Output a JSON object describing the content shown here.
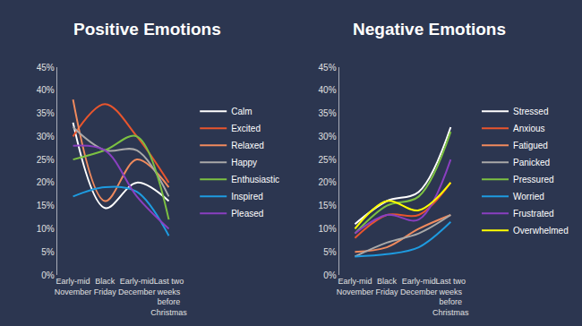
{
  "chart_data": [
    {
      "type": "line",
      "title": "Positive Emotions",
      "categories": [
        "Early-mid November",
        "Black Friday",
        "Early-mid December",
        "Last two weeks before Christmas"
      ],
      "series": [
        {
          "name": "Calm",
          "color": "#ffffff",
          "values": [
            33,
            14.5,
            20,
            16
          ]
        },
        {
          "name": "Excited",
          "color": "#e8552d",
          "values": [
            30,
            37,
            30,
            20
          ]
        },
        {
          "name": "Relaxed",
          "color": "#f08a5d",
          "values": [
            38,
            16,
            25,
            19
          ]
        },
        {
          "name": "Happy",
          "color": "#a9a9a9",
          "values": [
            32,
            27,
            27,
            17
          ]
        },
        {
          "name": "Enthusiastic",
          "color": "#7cc142",
          "values": [
            25,
            27,
            30,
            12
          ]
        },
        {
          "name": "Inspired",
          "color": "#1e9be0",
          "values": [
            17,
            19,
            18,
            8.5
          ]
        },
        {
          "name": "Pleased",
          "color": "#8a3fc0",
          "values": [
            28,
            27,
            17,
            10
          ]
        }
      ],
      "ylim": [
        0,
        45
      ],
      "yticks": [
        {
          "value": 0,
          "label": "0%"
        },
        {
          "value": 5,
          "label": "5%"
        },
        {
          "value": 10,
          "label": "10%"
        },
        {
          "value": 15,
          "label": "15%"
        },
        {
          "value": 20,
          "label": "20%"
        },
        {
          "value": 25,
          "label": "25%"
        },
        {
          "value": 30,
          "label": "30%"
        },
        {
          "value": 35,
          "label": "35%"
        },
        {
          "value": 40,
          "label": "40%"
        },
        {
          "value": 45,
          "label": "45%"
        }
      ],
      "grid": false,
      "legend": "right",
      "line_style": "smooth"
    },
    {
      "type": "line",
      "title": "Negative Emotions",
      "categories": [
        "Early-mid November",
        "Black Friday",
        "Early-mid December",
        "Last two weeks before Christmas"
      ],
      "series": [
        {
          "name": "Stressed",
          "color": "#ffffff",
          "values": [
            11,
            16,
            18,
            32
          ]
        },
        {
          "name": "Anxious",
          "color": "#e8552d",
          "values": [
            8,
            13,
            13,
            20
          ]
        },
        {
          "name": "Fatigued",
          "color": "#f08a5d",
          "values": [
            5,
            6,
            10,
            13
          ]
        },
        {
          "name": "Panicked",
          "color": "#a9a9a9",
          "values": [
            4,
            7,
            9,
            13
          ]
        },
        {
          "name": "Pressured",
          "color": "#7cc142",
          "values": [
            9,
            15,
            17,
            31
          ]
        },
        {
          "name": "Worried",
          "color": "#1e9be0",
          "values": [
            4,
            4.5,
            6,
            11.5
          ]
        },
        {
          "name": "Frustrated",
          "color": "#8a3fc0",
          "values": [
            9,
            13,
            12,
            25
          ]
        },
        {
          "name": "Overwhelmed",
          "color": "#ffff00",
          "values": [
            10,
            16,
            14,
            20
          ]
        }
      ],
      "ylim": [
        0,
        45
      ],
      "yticks": [
        {
          "value": 0,
          "label": "0%"
        },
        {
          "value": 5,
          "label": "5%"
        },
        {
          "value": 10,
          "label": "10%"
        },
        {
          "value": 15,
          "label": "15%"
        },
        {
          "value": 20,
          "label": "20%"
        },
        {
          "value": 25,
          "label": "25%"
        },
        {
          "value": 30,
          "label": "30%"
        },
        {
          "value": 35,
          "label": "35%"
        },
        {
          "value": 40,
          "label": "40%"
        },
        {
          "value": 45,
          "label": "45%"
        }
      ],
      "grid": false,
      "legend": "right",
      "line_style": "smooth"
    }
  ]
}
